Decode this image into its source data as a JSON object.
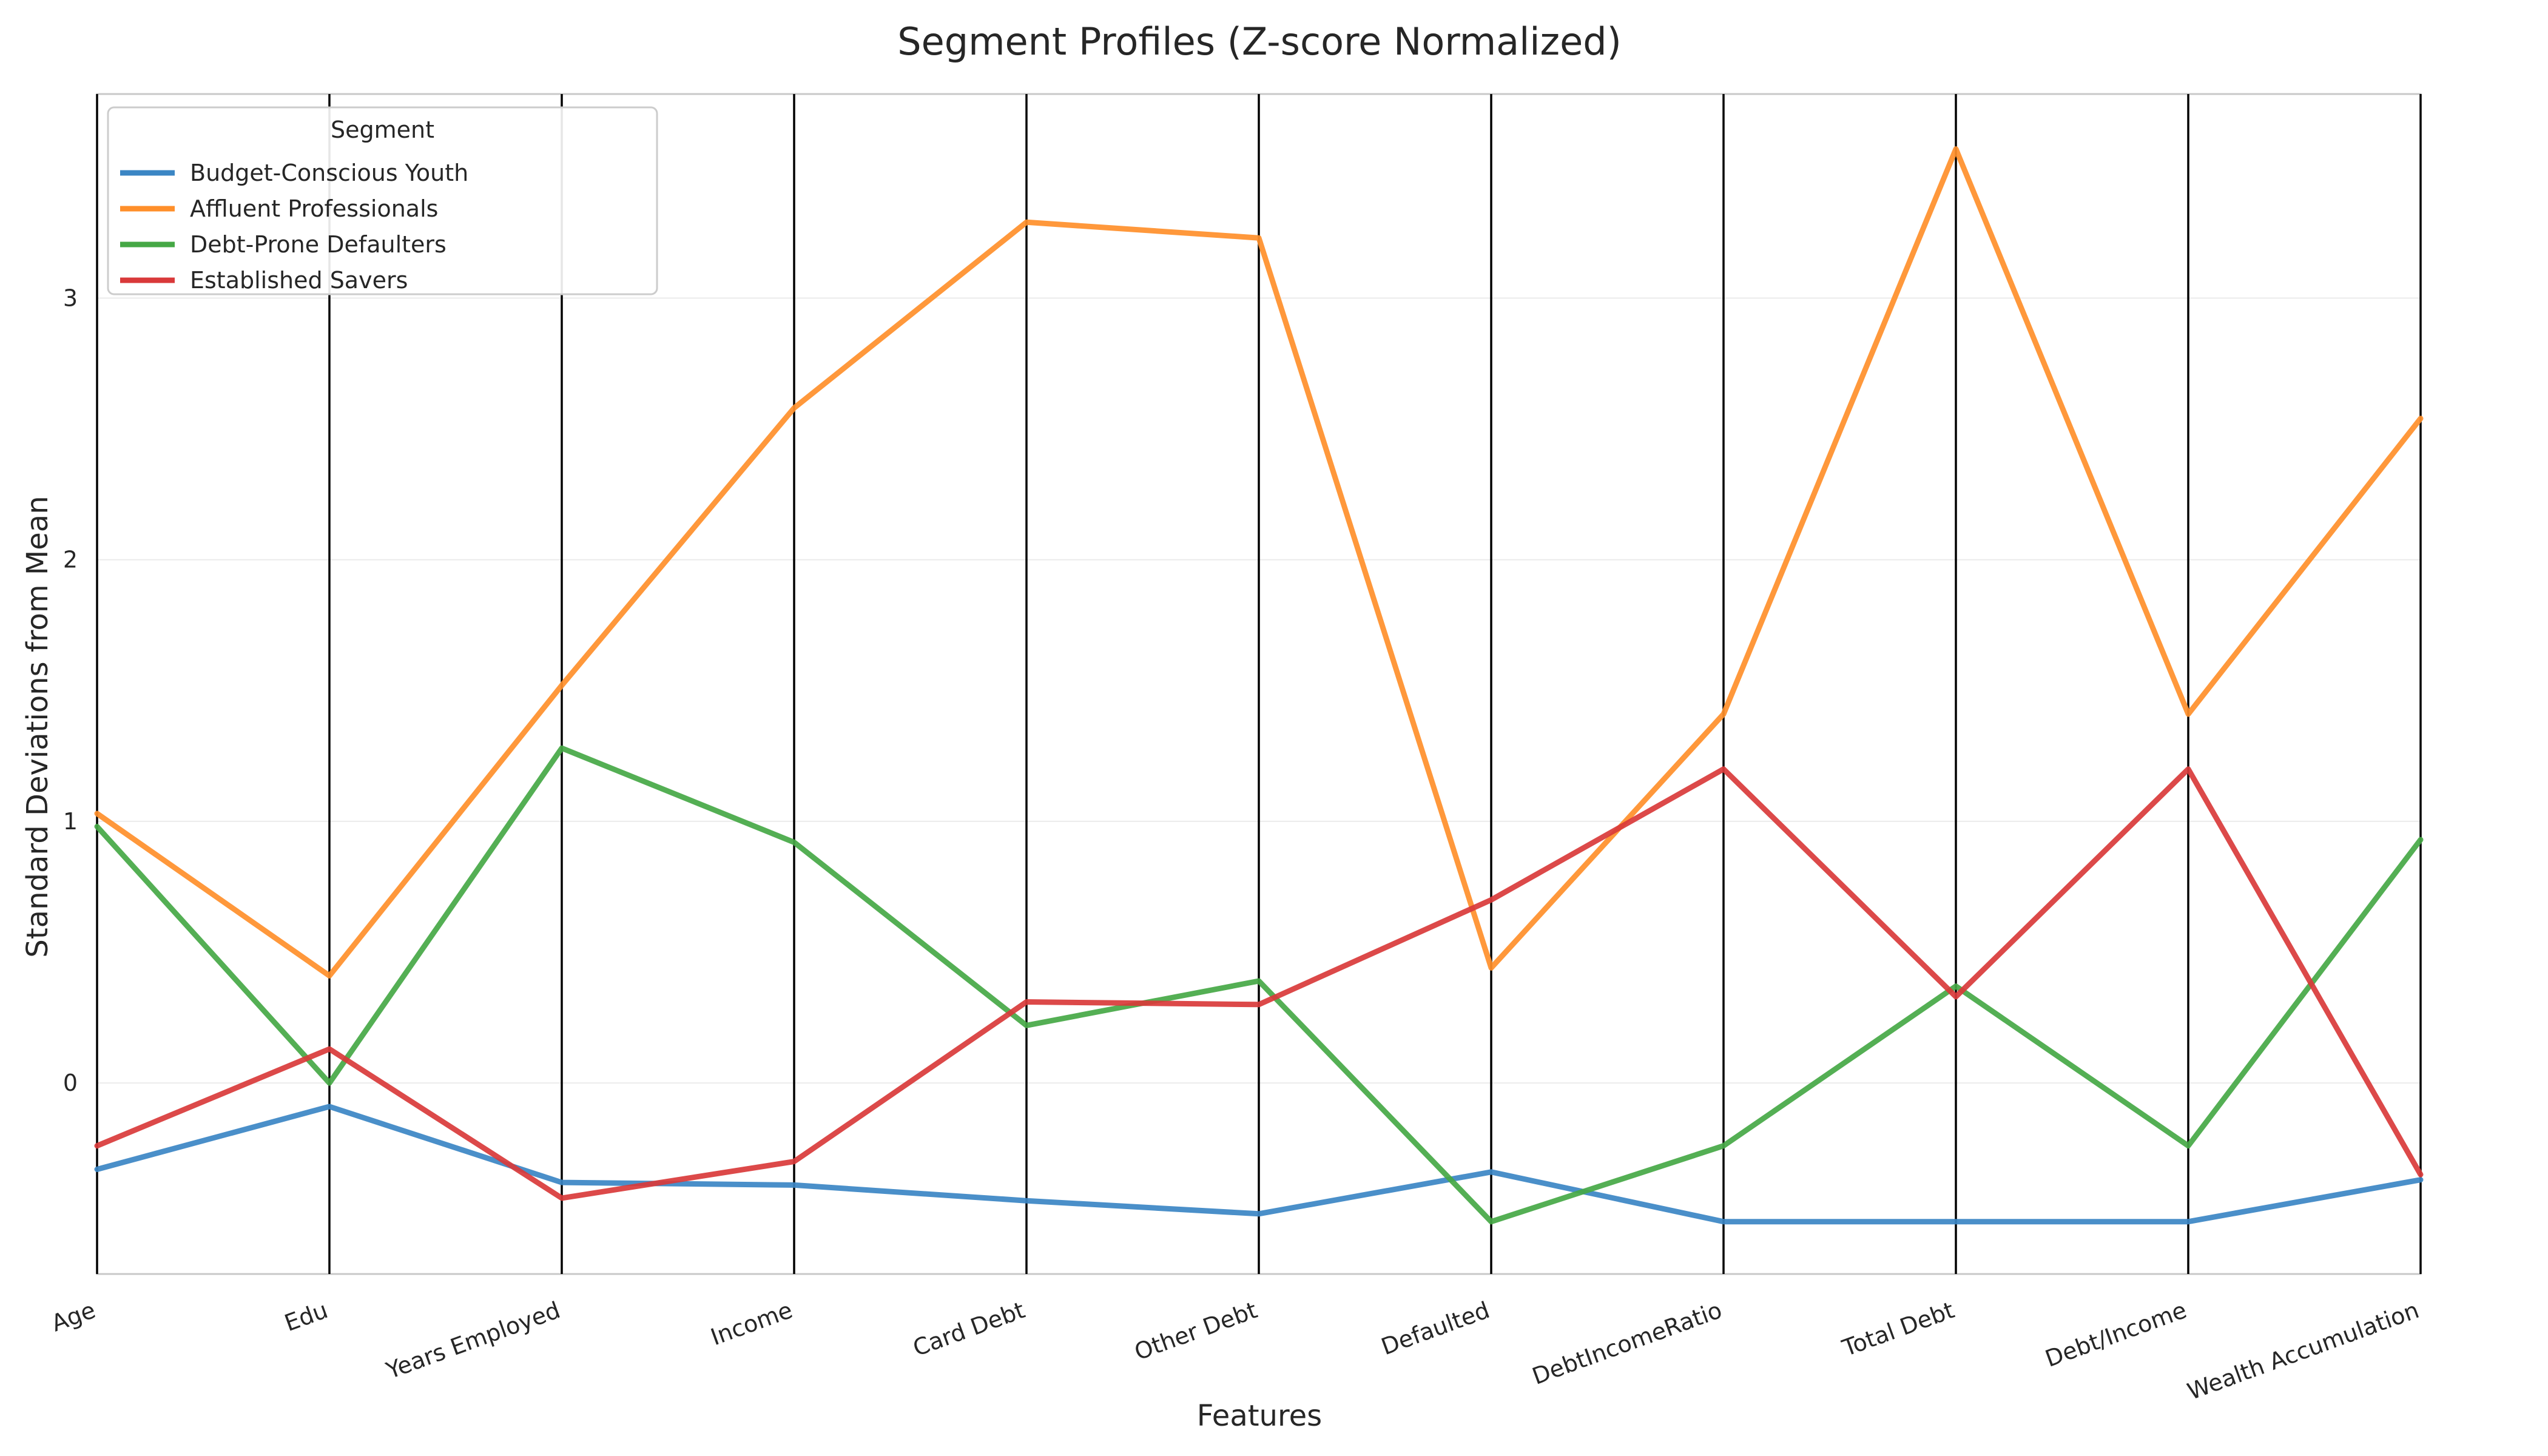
{
  "chart_data": {
    "type": "line",
    "title": "Segment Profiles (Z-score Normalized)",
    "xlabel": "Features",
    "ylabel": "Standard Deviations from Mean",
    "categories": [
      "Age",
      "Edu",
      "Years Employed",
      "Income",
      "Card Debt",
      "Other Debt",
      "Defaulted",
      "DebtIncomeRatio",
      "Total Debt",
      "Debt/Income",
      "Wealth Accumulation"
    ],
    "ylim": [
      -0.73,
      3.78
    ],
    "yticks": [
      "0",
      "1",
      "2",
      "3"
    ],
    "grid": true,
    "legend_title": "Segment",
    "legend_position": "top-left",
    "series": [
      {
        "name": "Budget-Conscious Youth",
        "color": "#3b86c4",
        "values": [
          -0.33,
          -0.09,
          -0.38,
          -0.39,
          -0.45,
          -0.5,
          -0.34,
          -0.53,
          -0.53,
          -0.53,
          -0.37
        ]
      },
      {
        "name": "Affluent Professionals",
        "color": "#ff8f2a",
        "values": [
          1.03,
          0.41,
          1.52,
          2.58,
          3.29,
          3.23,
          0.44,
          1.41,
          3.57,
          1.41,
          2.54
        ]
      },
      {
        "name": "Debt-Prone Defaulters",
        "color": "#45a845",
        "values": [
          0.98,
          0.0,
          1.28,
          0.92,
          0.22,
          0.39,
          -0.53,
          -0.24,
          0.37,
          -0.24,
          0.93
        ]
      },
      {
        "name": "Established Savers",
        "color": "#d9393a",
        "values": [
          -0.24,
          0.13,
          -0.44,
          -0.3,
          0.31,
          0.3,
          0.7,
          1.2,
          0.33,
          1.2,
          -0.35
        ]
      }
    ]
  }
}
